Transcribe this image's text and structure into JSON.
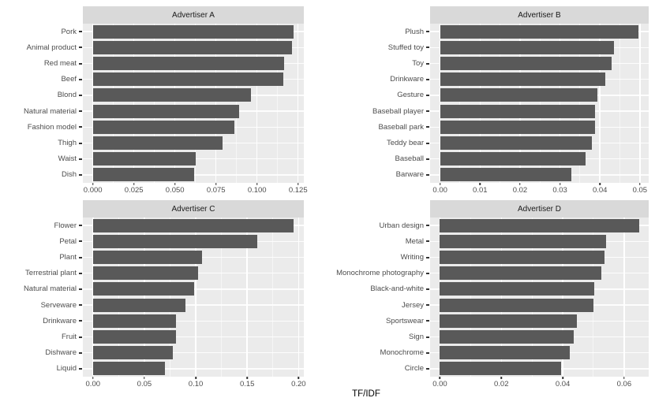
{
  "figure": {
    "axis_title": "TF/IDF",
    "colors": {
      "bar": "#595959",
      "panel_background": "#EBEBEB",
      "strip_background": "#D9D9D9",
      "strip_text": "#1A1A1A",
      "axis_text": "#4D4D4D",
      "grid_major": "#FFFFFF",
      "tick_mark": "#333333",
      "page_background": "#FFFFFF"
    }
  },
  "chart_data": [
    {
      "type": "bar",
      "orientation": "horizontal",
      "title": "Advertiser A",
      "categories": [
        "Pork",
        "Animal product",
        "Red meat",
        "Beef",
        "Blond",
        "Natural material",
        "Fashion model",
        "Thigh",
        "Waist",
        "Dish"
      ],
      "values": [
        0.1224,
        0.1211,
        0.1163,
        0.1159,
        0.0961,
        0.0889,
        0.0864,
        0.0788,
        0.0627,
        0.0617
      ],
      "tick_values": [
        0,
        0.025,
        0.05,
        0.075,
        0.1,
        0.125
      ],
      "tick_labels": [
        "0.000",
        "0.025",
        "0.050",
        "0.075",
        "0.100",
        "0.125"
      ],
      "xlim": [
        -0.0061,
        0.1285
      ],
      "grid": true,
      "xlabel": "TF/IDF"
    },
    {
      "type": "bar",
      "orientation": "horizontal",
      "title": "Advertiser B",
      "categories": [
        "Plush",
        "Stuffed toy",
        "Toy",
        "Drinkware",
        "Gesture",
        "Baseball player",
        "Baseball park",
        "Teddy bear",
        "Baseball",
        "Barware"
      ],
      "values": [
        0.0497,
        0.0436,
        0.043,
        0.0414,
        0.0394,
        0.0388,
        0.0388,
        0.0379,
        0.0365,
        0.0329
      ],
      "tick_values": [
        0,
        0.01,
        0.02,
        0.03,
        0.04,
        0.05
      ],
      "tick_labels": [
        "0.00",
        "0.01",
        "0.02",
        "0.03",
        "0.04",
        "0.05"
      ],
      "xlim": [
        -0.0025,
        0.0522
      ],
      "grid": true,
      "xlabel": "TF/IDF"
    },
    {
      "type": "bar",
      "orientation": "horizontal",
      "title": "Advertiser C",
      "categories": [
        "Flower",
        "Petal",
        "Plant",
        "Terrestrial plant",
        "Natural material",
        "Serveware",
        "Drinkware",
        "Fruit",
        "Dishware",
        "Liquid"
      ],
      "values": [
        0.1953,
        0.1595,
        0.106,
        0.1019,
        0.0981,
        0.0903,
        0.0808,
        0.0806,
        0.0774,
        0.0697
      ],
      "tick_values": [
        0,
        0.05,
        0.1,
        0.15,
        0.2
      ],
      "tick_labels": [
        "0.00",
        "0.05",
        "0.10",
        "0.15",
        "0.20"
      ],
      "xlim": [
        -0.0098,
        0.2051
      ],
      "grid": true,
      "xlabel": "TF/IDF"
    },
    {
      "type": "bar",
      "orientation": "horizontal",
      "title": "Advertiser D",
      "categories": [
        "Urban design",
        "Metal",
        "Writing",
        "Monochrome photography",
        "Black-and-white",
        "Jersey",
        "Sportswear",
        "Sign",
        "Monochrome",
        "Circle"
      ],
      "values": [
        0.0648,
        0.0541,
        0.0536,
        0.0526,
        0.0502,
        0.05,
        0.0447,
        0.0435,
        0.0423,
        0.0396
      ],
      "tick_values": [
        0,
        0.02,
        0.04,
        0.06
      ],
      "tick_labels": [
        "0.00",
        "0.02",
        "0.04",
        "0.06"
      ],
      "xlim": [
        -0.0032,
        0.068
      ],
      "grid": true,
      "xlabel": "TF/IDF"
    }
  ]
}
